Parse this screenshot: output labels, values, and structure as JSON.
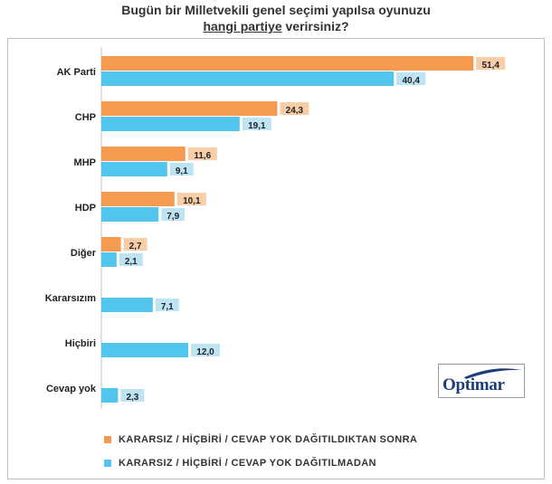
{
  "title": {
    "line1": "Bugün bir Milletvekili genel seçimi yapılsa oyunuzu",
    "line2_underlined": "hangi partiye",
    "line2_rest": " verirsiniz?"
  },
  "logo": {
    "text": "Optimar"
  },
  "colors": {
    "series1": "#f59a4e",
    "series2": "#52c5ee",
    "label_bg1": "#f8cda8",
    "label_bg2": "#bde4f3"
  },
  "chart_data": {
    "type": "bar",
    "orientation": "horizontal",
    "title": "Bugün bir Milletvekili genel seçimi yapılsa oyunuzu hangi partiye verirsiniz?",
    "categories": [
      "AK Parti",
      "CHP",
      "MHP",
      "HDP",
      "Diğer",
      "Kararsızım",
      "Hiçbiri",
      "Cevap yok"
    ],
    "series": [
      {
        "name": "KARARSIZ / HİÇBİRİ / CEVAP YOK DAĞITILDIKTAN SONRA",
        "values": [
          51.4,
          24.3,
          11.6,
          10.1,
          2.7,
          null,
          null,
          null
        ],
        "labels": [
          "51,4",
          "24,3",
          "11,6",
          "10,1",
          "2,7",
          null,
          null,
          null
        ]
      },
      {
        "name": "KARARSIZ / HİÇBİRİ / CEVAP YOK DAĞITILMADAN",
        "values": [
          40.4,
          19.1,
          9.1,
          7.9,
          2.1,
          7.1,
          12.0,
          2.3
        ],
        "labels": [
          "40,4",
          "19,1",
          "9,1",
          "7,9",
          "2,1",
          "7,1",
          "12,0",
          "2,3"
        ]
      }
    ],
    "xlim": [
      0,
      55
    ],
    "grid": false,
    "legend_position": "bottom"
  }
}
